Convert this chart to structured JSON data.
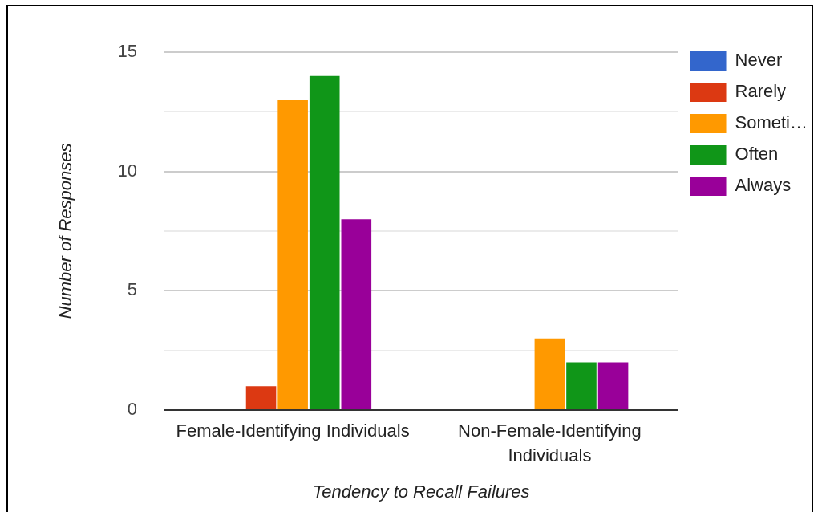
{
  "chart_data": {
    "type": "bar",
    "xlabel": "Tendency to Recall Failures",
    "ylabel": "Number of Responses",
    "categories": [
      "Female-Identifying Individuals",
      "Non-Female-Identifying Individuals"
    ],
    "series": [
      {
        "name": "Never",
        "color": "#3366cc",
        "values": [
          0,
          0
        ]
      },
      {
        "name": "Rarely",
        "color": "#dc3912",
        "values": [
          1,
          0
        ]
      },
      {
        "name": "Someti…",
        "color": "#ff9900",
        "values": [
          13,
          3
        ]
      },
      {
        "name": "Often",
        "color": "#109618",
        "values": [
          14,
          2
        ]
      },
      {
        "name": "Always",
        "color": "#990099",
        "values": [
          8,
          2
        ]
      }
    ],
    "ylim": [
      0,
      15
    ],
    "yticks": [
      0,
      {
        "value": 2.5,
        "label": null
      },
      5,
      {
        "value": 7.5,
        "label": null
      },
      10,
      {
        "value": 12.5,
        "label": null
      },
      15
    ],
    "grid": "y",
    "legend": "top right"
  }
}
